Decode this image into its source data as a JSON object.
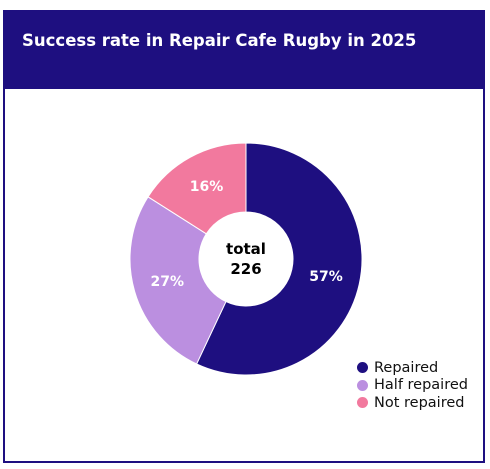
{
  "title": "Success rate in Repair Cafe Rugby in 2025",
  "chart_data": {
    "type": "pie",
    "title": "Success rate in Repair Cafe Rugby in 2025",
    "donut": true,
    "center_label": [
      "total",
      "226"
    ],
    "total": 226,
    "slices": [
      {
        "name": "Repaired",
        "value": 57,
        "label": "57%",
        "color": "#1e0f80"
      },
      {
        "name": "Half repaired",
        "value": 27,
        "label": "27%",
        "color": "#bb8fe0"
      },
      {
        "name": "Not repaired",
        "value": 16,
        "label": "16%",
        "color": "#f2799e"
      }
    ],
    "legend_position": "bottom-right"
  }
}
